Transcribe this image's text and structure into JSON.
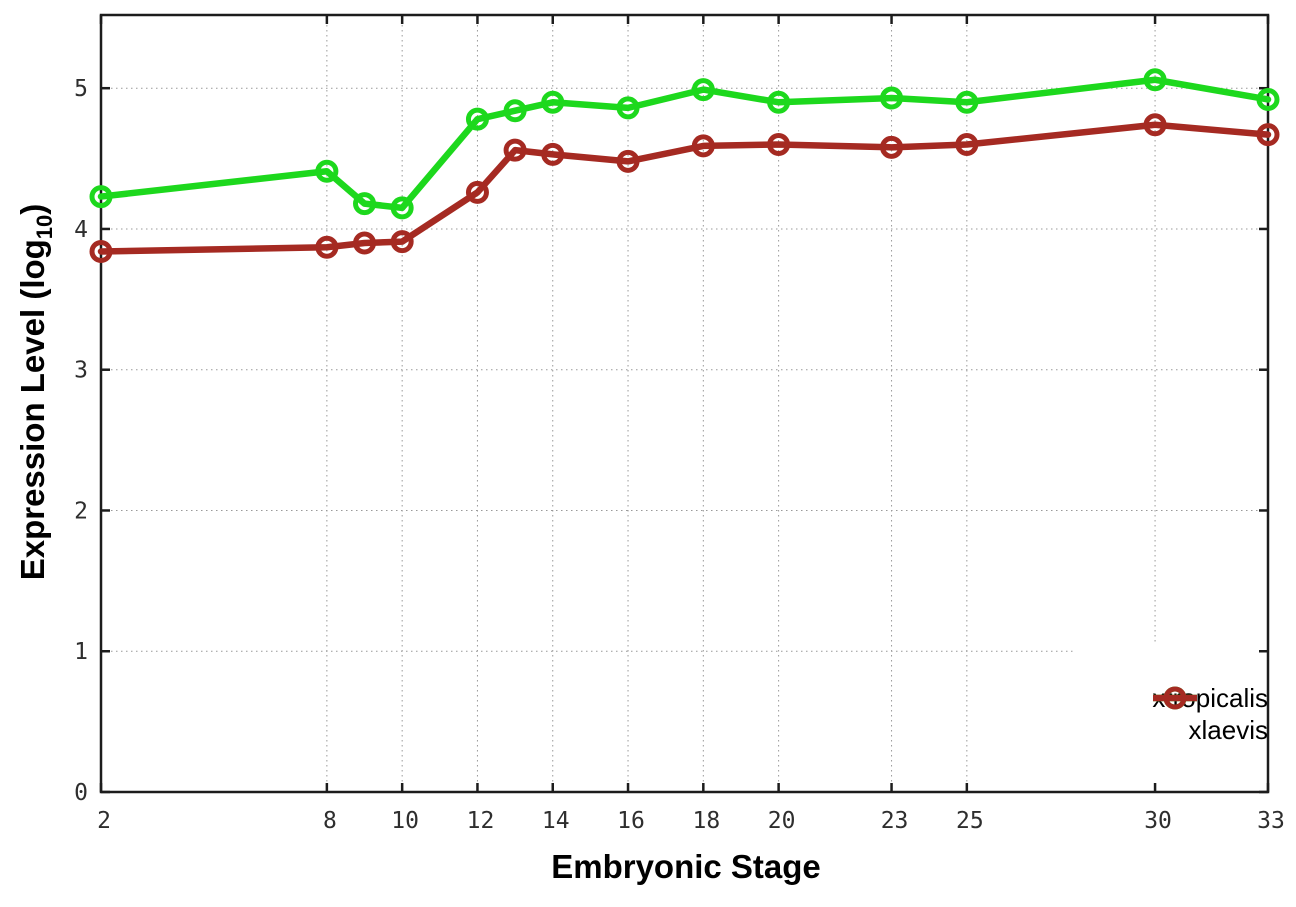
{
  "chart_data": {
    "type": "line",
    "title": "",
    "xlabel": "Embryonic Stage",
    "ylabel": "Expression Level (log10)",
    "ylabel_rich": {
      "main": "Expression Level (log",
      "sub": "10",
      "close": ")"
    },
    "xlim": [
      2,
      33
    ],
    "ylim": [
      0,
      5.52
    ],
    "x_ticks": [
      2,
      8,
      10,
      12,
      14,
      16,
      18,
      20,
      23,
      25,
      30,
      33
    ],
    "y_ticks": [
      0,
      1,
      2,
      3,
      4,
      5
    ],
    "grid": "dotted",
    "legend_position": "inside-bottom-right",
    "x": [
      2,
      8,
      9,
      10,
      12,
      13,
      14,
      16,
      18,
      20,
      23,
      25,
      30,
      33
    ],
    "series": [
      {
        "name": "xtropicalis",
        "color": "#1dd81d",
        "values": [
          4.23,
          4.41,
          4.18,
          4.15,
          4.78,
          4.84,
          4.9,
          4.86,
          4.99,
          4.9,
          4.93,
          4.9,
          5.06,
          4.92
        ]
      },
      {
        "name": "xlaevis",
        "color": "#a52a22",
        "values": [
          3.84,
          3.87,
          3.9,
          3.91,
          4.26,
          4.56,
          4.53,
          4.48,
          4.59,
          4.6,
          4.58,
          4.6,
          4.74,
          4.67
        ]
      }
    ]
  }
}
